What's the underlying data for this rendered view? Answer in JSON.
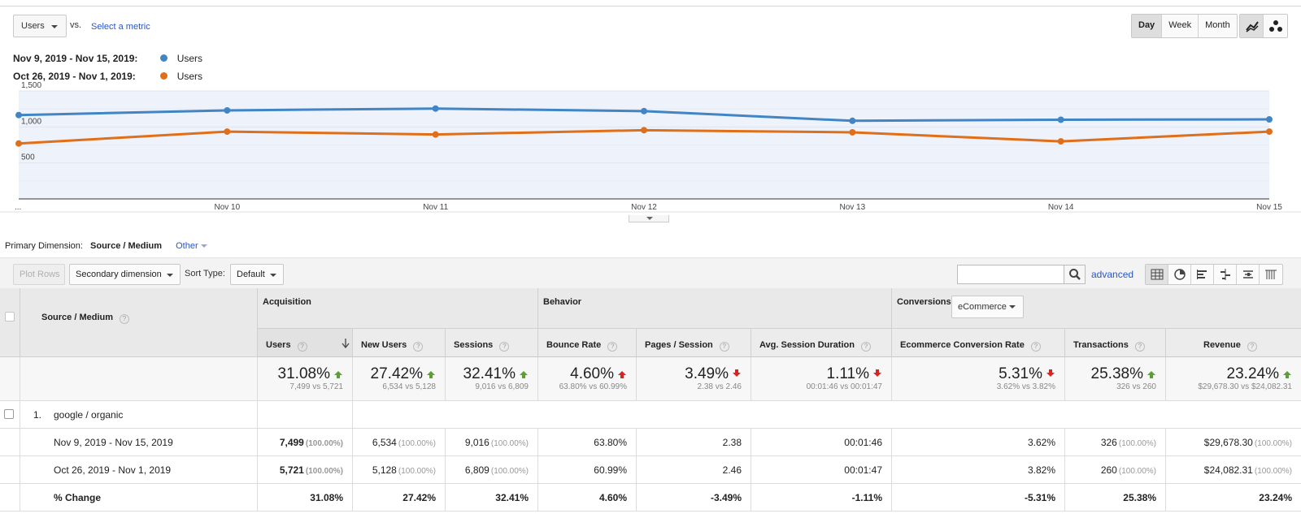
{
  "controls": {
    "metric_label": "Users",
    "vs_label": "vs.",
    "select_metric_label": "Select a metric",
    "granularity": [
      "Day",
      "Week",
      "Month"
    ],
    "granularity_active": "Day",
    "chart_modes": [
      "line-chart-icon",
      "motion-chart-icon"
    ]
  },
  "legend": [
    {
      "range": "Nov 9, 2019 - Nov 15, 2019:",
      "metric": "Users",
      "color": "#4285c4"
    },
    {
      "range": "Oct 26, 2019 - Nov 1, 2019:",
      "metric": "Users",
      "color": "#e06f1a"
    }
  ],
  "chart_data": {
    "type": "line",
    "x": [
      "...",
      "Nov 10",
      "Nov 11",
      "Nov 12",
      "Nov 13",
      "Nov 14",
      "Nov 15"
    ],
    "y_ticks": [
      "1,500",
      "1,000",
      "500"
    ],
    "ylim": [
      0,
      1500
    ],
    "grid": true,
    "series": [
      {
        "name": "Users",
        "color": "#4285c4",
        "values": [
          1165,
          1230,
          1255,
          1220,
          1085,
          1100,
          1105
        ]
      },
      {
        "name": "Users",
        "color": "#e06f1a",
        "values": [
          770,
          935,
          895,
          955,
          925,
          800,
          935
        ]
      }
    ]
  },
  "dimension": {
    "label": "Primary Dimension:",
    "current": "Source / Medium",
    "other": "Other"
  },
  "toolbar": {
    "plot_rows": "Plot Rows",
    "secondary_dimension": "Secondary dimension",
    "sort_type_label": "Sort Type:",
    "sort_type_value": "Default",
    "search_value": "",
    "advanced": "advanced"
  },
  "table": {
    "dimension_header": "Source / Medium",
    "groups": {
      "acquisition": "Acquisition",
      "behavior": "Behavior",
      "conversions": "Conversions",
      "conversions_select": "eCommerce"
    },
    "columns": [
      "Users",
      "New Users",
      "Sessions",
      "Bounce Rate",
      "Pages / Session",
      "Avg. Session Duration",
      "Ecommerce Conversion Rate",
      "Transactions",
      "Revenue"
    ],
    "totals": [
      {
        "pct": "31.08%",
        "dir": "up",
        "sub": "7,499 vs 5,721"
      },
      {
        "pct": "27.42%",
        "dir": "up",
        "sub": "6,534 vs 5,128"
      },
      {
        "pct": "32.41%",
        "dir": "up",
        "sub": "9,016 vs 6,809"
      },
      {
        "pct": "4.60%",
        "dir": "up-red",
        "sub": "63.80% vs 60.99%"
      },
      {
        "pct": "3.49%",
        "dir": "down",
        "sub": "2.38 vs 2.46"
      },
      {
        "pct": "1.11%",
        "dir": "down",
        "sub": "00:01:46 vs 00:01:47"
      },
      {
        "pct": "5.31%",
        "dir": "down",
        "sub": "3.62% vs 3.82%"
      },
      {
        "pct": "25.38%",
        "dir": "up",
        "sub": "326 vs 260"
      },
      {
        "pct": "23.24%",
        "dir": "up",
        "sub": "$29,678.30 vs $24,082.31"
      }
    ],
    "row": {
      "index": "1.",
      "label": "google / organic"
    },
    "subrows": [
      {
        "label": "Nov 9, 2019 - Nov 15, 2019",
        "bold": false,
        "cells": [
          {
            "v": "7,499",
            "p": "(100.00%)",
            "b": true
          },
          {
            "v": "6,534",
            "p": "(100.00%)"
          },
          {
            "v": "9,016",
            "p": "(100.00%)"
          },
          {
            "v": "63.80%"
          },
          {
            "v": "2.38"
          },
          {
            "v": "00:01:46"
          },
          {
            "v": "3.62%"
          },
          {
            "v": "326",
            "p": "(100.00%)"
          },
          {
            "v": "$29,678.30",
            "p": "(100.00%)"
          }
        ]
      },
      {
        "label": "Oct 26, 2019 - Nov 1, 2019",
        "bold": false,
        "cells": [
          {
            "v": "5,721",
            "p": "(100.00%)",
            "b": true
          },
          {
            "v": "5,128",
            "p": "(100.00%)"
          },
          {
            "v": "6,809",
            "p": "(100.00%)"
          },
          {
            "v": "60.99%"
          },
          {
            "v": "2.46"
          },
          {
            "v": "00:01:47"
          },
          {
            "v": "3.82%"
          },
          {
            "v": "260",
            "p": "(100.00%)"
          },
          {
            "v": "$24,082.31",
            "p": "(100.00%)"
          }
        ]
      },
      {
        "label": "% Change",
        "bold": true,
        "cells": [
          {
            "v": "31.08%"
          },
          {
            "v": "27.42%"
          },
          {
            "v": "32.41%"
          },
          {
            "v": "4.60%"
          },
          {
            "v": "-3.49%"
          },
          {
            "v": "-1.11%"
          },
          {
            "v": "-5.31%"
          },
          {
            "v": "25.38%"
          },
          {
            "v": "23.24%"
          }
        ]
      }
    ]
  }
}
